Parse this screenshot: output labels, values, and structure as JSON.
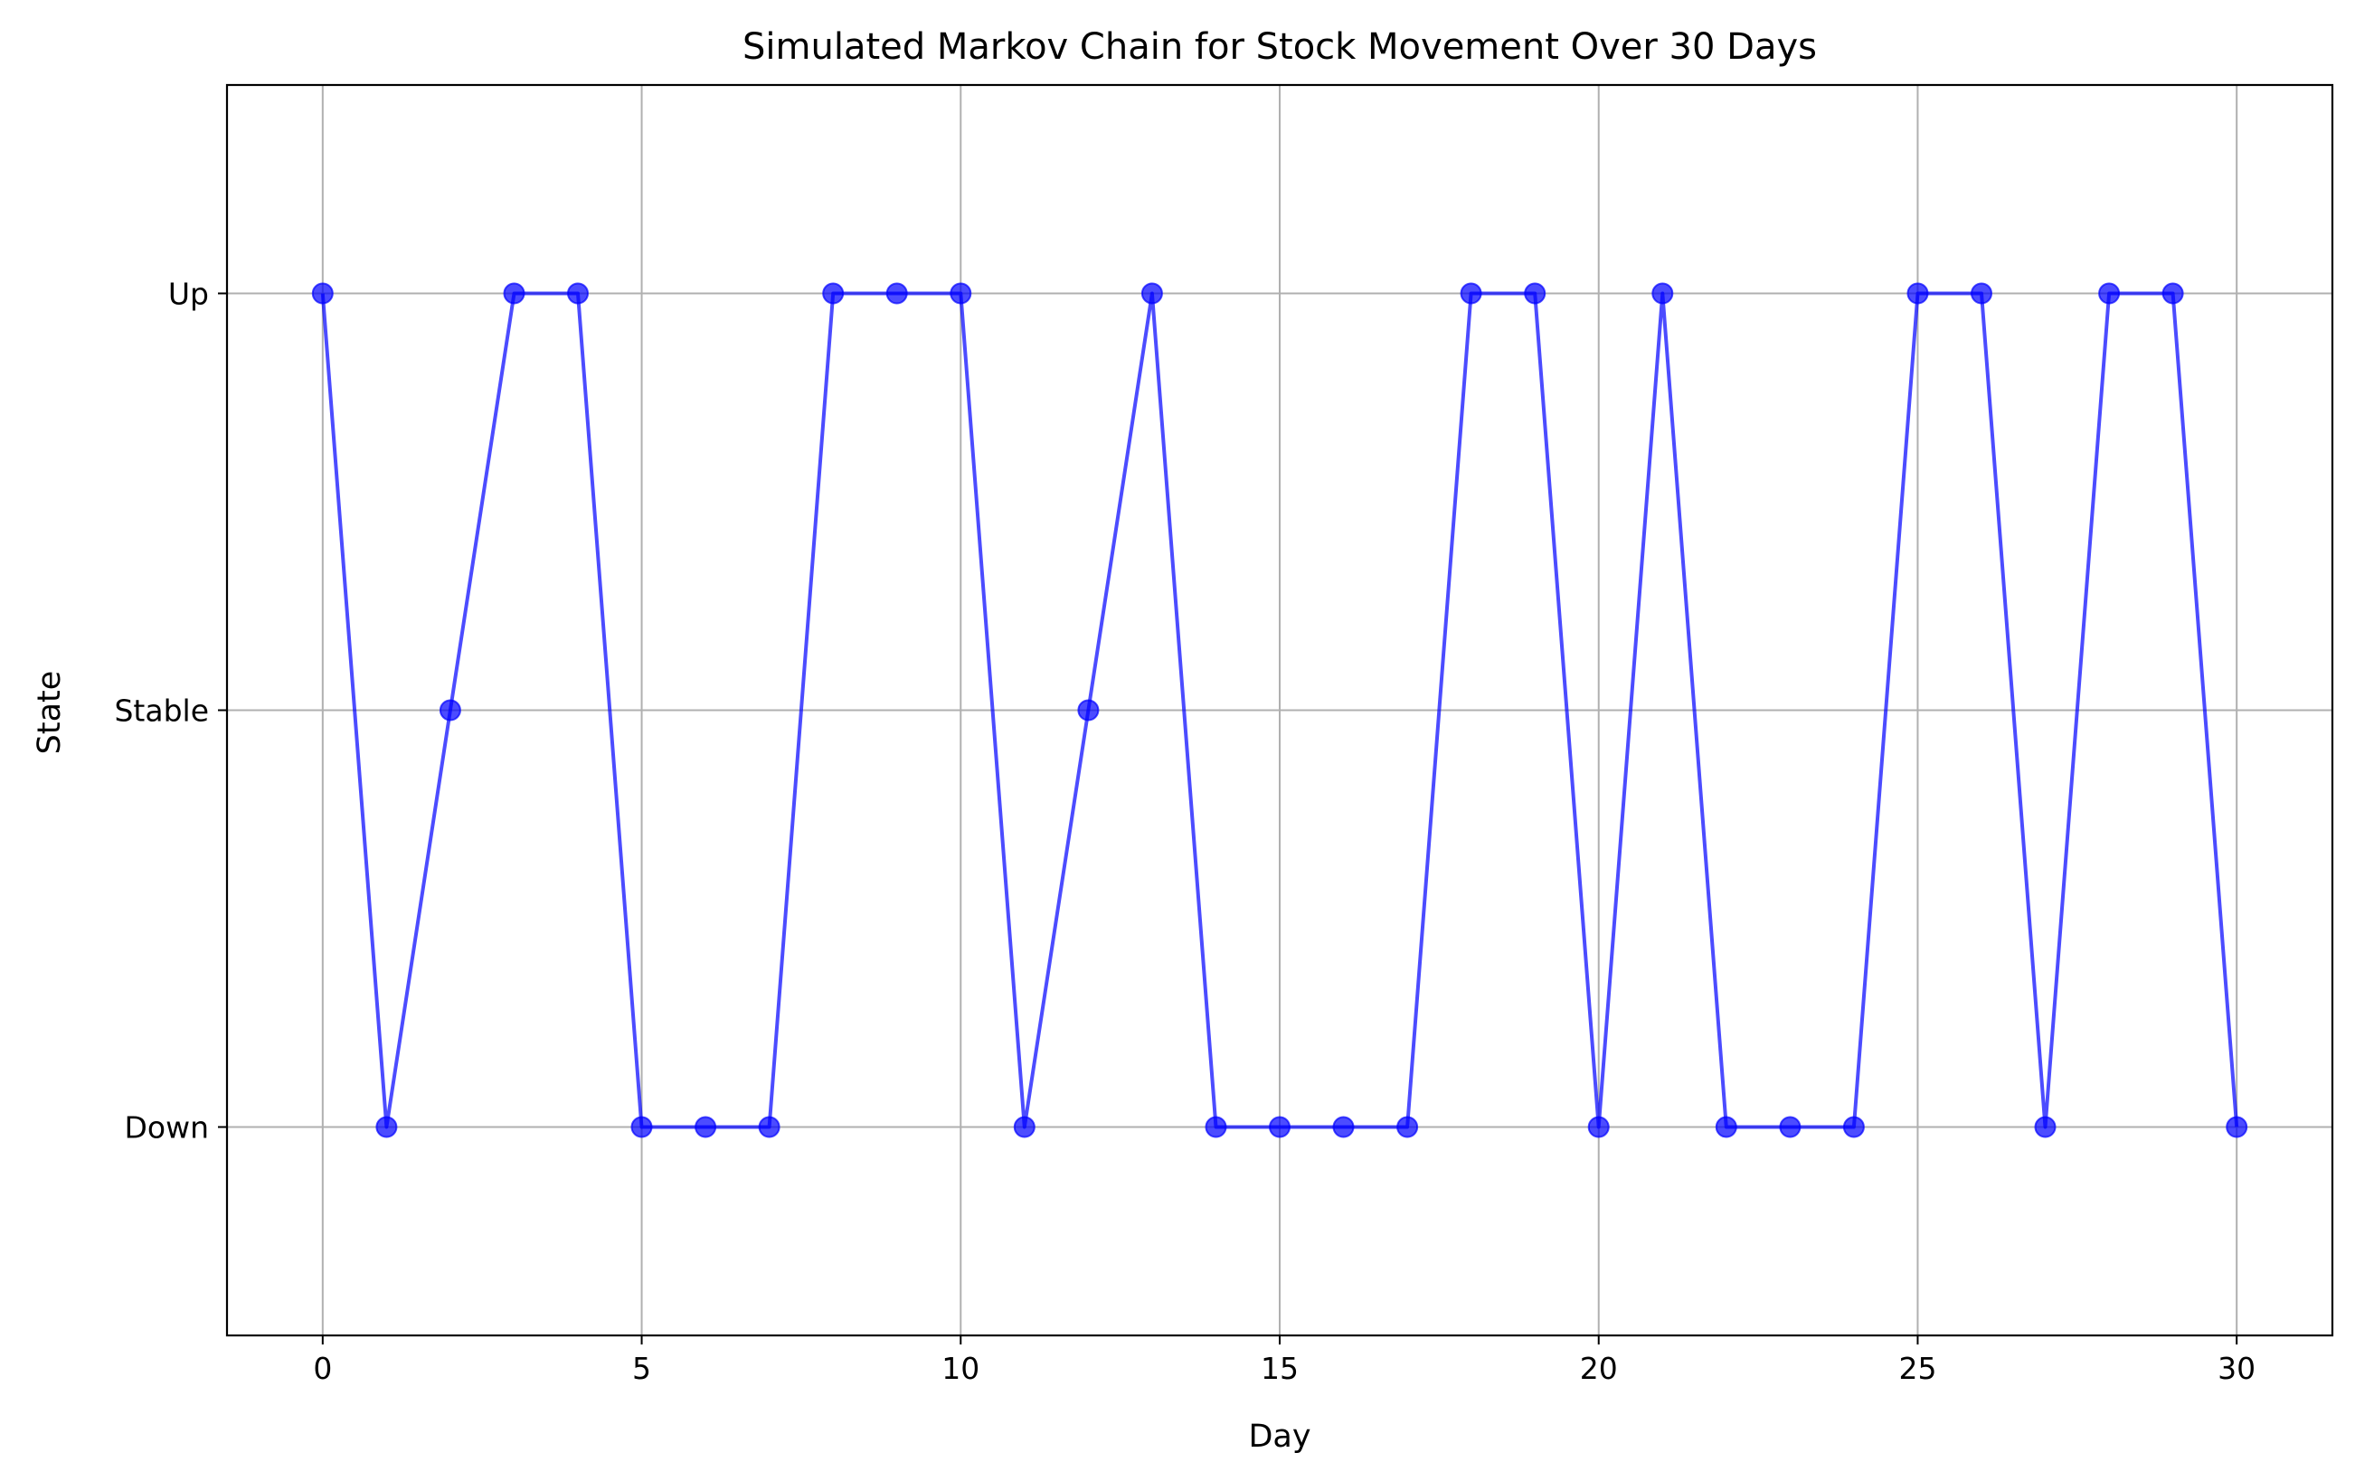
{
  "chart_data": {
    "type": "line",
    "title": "Simulated Markov Chain for Stock Movement Over 30 Days",
    "xlabel": "Day",
    "ylabel": "State",
    "x_ticks": [
      "0",
      "5",
      "10",
      "15",
      "20",
      "25",
      "30"
    ],
    "x_tick_values": [
      0,
      5,
      10,
      15,
      20,
      25,
      30
    ],
    "y_ticks": [
      "Down",
      "Stable",
      "Up"
    ],
    "xlim": [
      -1.5,
      31.5
    ],
    "ylim": [
      -0.5,
      2.5
    ],
    "grid": true,
    "line_color": "#0000ff",
    "marker": "circle",
    "series": [
      {
        "x": [
          0,
          1,
          2,
          3,
          4,
          5,
          6,
          7,
          8,
          9,
          10,
          11,
          12,
          13,
          14,
          15,
          16,
          17,
          18,
          19,
          20,
          21,
          22,
          23,
          24,
          25,
          26,
          27,
          28,
          29,
          30
        ],
        "values": [
          "Up",
          "Down",
          "Stable",
          "Up",
          "Up",
          "Down",
          "Down",
          "Down",
          "Up",
          "Up",
          "Up",
          "Down",
          "Stable",
          "Up",
          "Down",
          "Down",
          "Down",
          "Down",
          "Up",
          "Up",
          "Down",
          "Up",
          "Down",
          "Down",
          "Down",
          "Up",
          "Up",
          "Down",
          "Up",
          "Up",
          "Down"
        ]
      }
    ]
  }
}
